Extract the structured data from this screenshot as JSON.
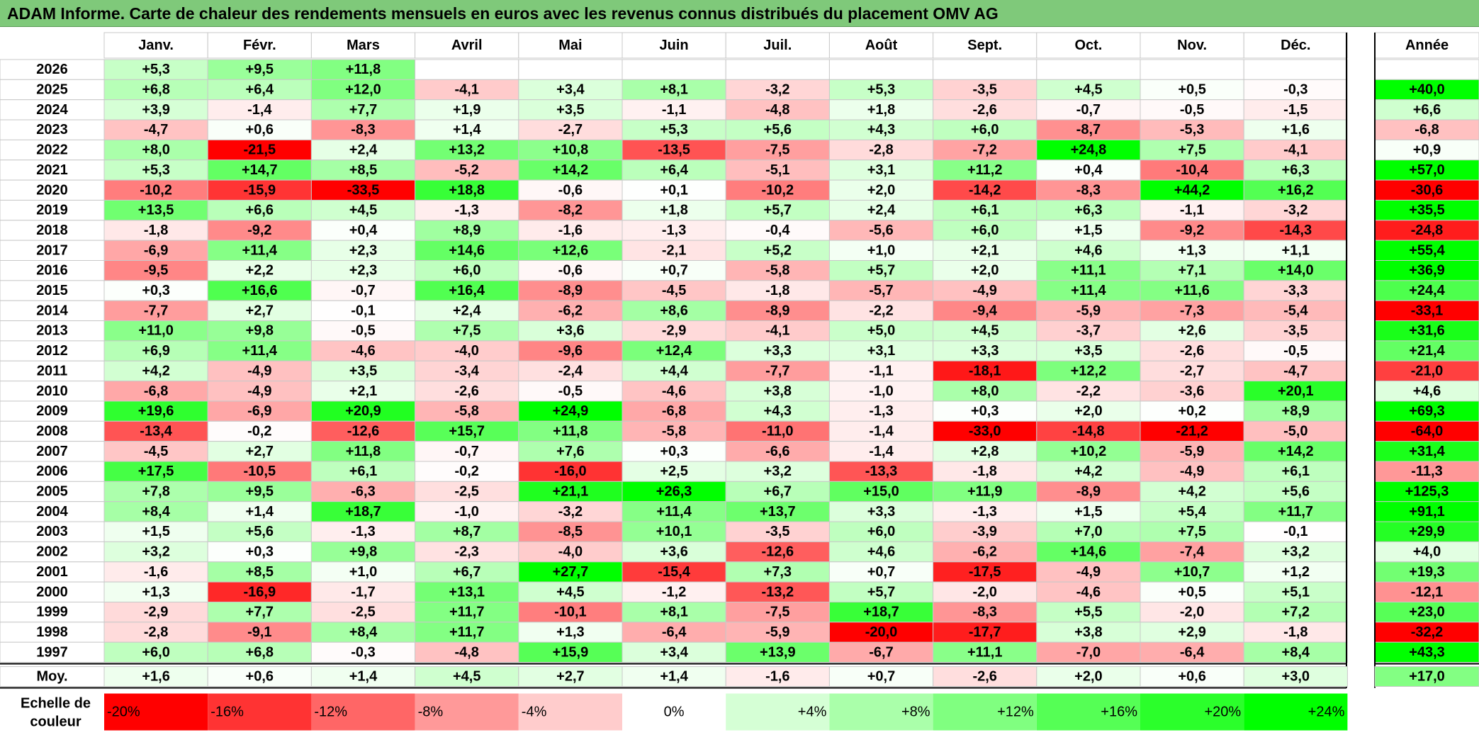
{
  "title": "ADAM Informe. Carte de chaleur des rendements mensuels en euros avec les revenus connus distribués du placement OMV AG",
  "chart_data": {
    "type": "heatmap",
    "title": "ADAM Informe. Carte de chaleur des rendements mensuels en euros avec les revenus connus distribués du placement OMV AG",
    "months": [
      "Janv.",
      "Févr.",
      "Mars",
      "Avril",
      "Mai",
      "Juin",
      "Juil.",
      "Août",
      "Sept.",
      "Oct.",
      "Nov.",
      "Déc."
    ],
    "year_header": "Année",
    "rows": [
      {
        "year": "2026",
        "values": [
          "+5,3",
          "+9,5",
          "+11,8",
          null,
          null,
          null,
          null,
          null,
          null,
          null,
          null,
          null
        ],
        "annual": null
      },
      {
        "year": "2025",
        "values": [
          "+6,8",
          "+6,4",
          "+12,0",
          "-4,1",
          "+3,4",
          "+8,1",
          "-3,2",
          "+5,3",
          "-3,5",
          "+4,5",
          "+0,5",
          "-0,3"
        ],
        "annual": "+40,0"
      },
      {
        "year": "2024",
        "values": [
          "+3,9",
          "-1,4",
          "+7,7",
          "+1,9",
          "+3,5",
          "-1,1",
          "-4,8",
          "+1,8",
          "-2,6",
          "-0,7",
          "-0,5",
          "-1,5"
        ],
        "annual": "+6,6"
      },
      {
        "year": "2023",
        "values": [
          "-4,7",
          "+0,6",
          "-8,3",
          "+1,4",
          "-2,7",
          "+5,3",
          "+5,6",
          "+4,3",
          "+6,0",
          "-8,7",
          "-5,3",
          "+1,6"
        ],
        "annual": "-6,8"
      },
      {
        "year": "2022",
        "values": [
          "+8,0",
          "-21,5",
          "+2,4",
          "+13,2",
          "+10,8",
          "-13,5",
          "-7,5",
          "-2,8",
          "-7,2",
          "+24,8",
          "+7,5",
          "-4,1"
        ],
        "annual": "+0,9"
      },
      {
        "year": "2021",
        "values": [
          "+5,3",
          "+14,7",
          "+8,5",
          "-5,2",
          "+14,2",
          "+6,4",
          "-5,1",
          "+3,1",
          "+11,2",
          "+0,4",
          "-10,4",
          "+6,3"
        ],
        "annual": "+57,0"
      },
      {
        "year": "2020",
        "values": [
          "-10,2",
          "-15,9",
          "-33,5",
          "+18,8",
          "-0,6",
          "+0,1",
          "-10,2",
          "+2,0",
          "-14,2",
          "-8,3",
          "+44,2",
          "+16,2"
        ],
        "annual": "-30,6"
      },
      {
        "year": "2019",
        "values": [
          "+13,5",
          "+6,6",
          "+4,5",
          "-1,3",
          "-8,2",
          "+1,8",
          "+5,7",
          "+2,4",
          "+6,1",
          "+6,3",
          "-1,1",
          "-3,2"
        ],
        "annual": "+35,5"
      },
      {
        "year": "2018",
        "values": [
          "-1,8",
          "-9,2",
          "+0,4",
          "+8,9",
          "-1,6",
          "-1,3",
          "-0,4",
          "-5,6",
          "+6,0",
          "+1,5",
          "-9,2",
          "-14,3"
        ],
        "annual": "-24,8"
      },
      {
        "year": "2017",
        "values": [
          "-6,9",
          "+11,4",
          "+2,3",
          "+14,6",
          "+12,6",
          "-2,1",
          "+5,2",
          "+1,0",
          "+2,1",
          "+4,6",
          "+1,3",
          "+1,1"
        ],
        "annual": "+55,4"
      },
      {
        "year": "2016",
        "values": [
          "-9,5",
          "+2,2",
          "+2,3",
          "+6,0",
          "-0,6",
          "+0,7",
          "-5,8",
          "+5,7",
          "+2,0",
          "+11,1",
          "+7,1",
          "+14,0"
        ],
        "annual": "+36,9"
      },
      {
        "year": "2015",
        "values": [
          "+0,3",
          "+16,6",
          "-0,7",
          "+16,4",
          "-8,9",
          "-4,5",
          "-1,8",
          "-5,7",
          "-4,9",
          "+11,4",
          "+11,6",
          "-3,3"
        ],
        "annual": "+24,4"
      },
      {
        "year": "2014",
        "values": [
          "-7,7",
          "+2,7",
          "-0,1",
          "+2,4",
          "-6,2",
          "+8,6",
          "-8,9",
          "-2,2",
          "-9,4",
          "-5,9",
          "-7,3",
          "-5,4"
        ],
        "annual": "-33,1"
      },
      {
        "year": "2013",
        "values": [
          "+11,0",
          "+9,8",
          "-0,5",
          "+7,5",
          "+3,6",
          "-2,9",
          "-4,1",
          "+5,0",
          "+4,5",
          "-3,7",
          "+2,6",
          "-3,5"
        ],
        "annual": "+31,6"
      },
      {
        "year": "2012",
        "values": [
          "+6,9",
          "+11,4",
          "-4,6",
          "-4,0",
          "-9,6",
          "+12,4",
          "+3,3",
          "+3,1",
          "+3,3",
          "+3,5",
          "-2,6",
          "-0,5"
        ],
        "annual": "+21,4"
      },
      {
        "year": "2011",
        "values": [
          "+4,2",
          "-4,9",
          "+3,5",
          "-3,4",
          "-2,4",
          "+4,4",
          "-7,7",
          "-1,1",
          "-18,1",
          "+12,2",
          "-2,7",
          "-4,7"
        ],
        "annual": "-21,0"
      },
      {
        "year": "2010",
        "values": [
          "-6,8",
          "-4,9",
          "+2,1",
          "-2,6",
          "-0,5",
          "-4,6",
          "+3,8",
          "-1,0",
          "+8,0",
          "-2,2",
          "-3,6",
          "+20,1"
        ],
        "annual": "+4,6"
      },
      {
        "year": "2009",
        "values": [
          "+19,6",
          "-6,9",
          "+20,9",
          "-5,8",
          "+24,9",
          "-6,8",
          "+4,3",
          "-1,3",
          "+0,3",
          "+2,0",
          "+0,2",
          "+8,9"
        ],
        "annual": "+69,3"
      },
      {
        "year": "2008",
        "values": [
          "-13,4",
          "-0,2",
          "-12,6",
          "+15,7",
          "+11,8",
          "-5,8",
          "-11,0",
          "-1,4",
          "-33,0",
          "-14,8",
          "-21,2",
          "-5,0"
        ],
        "annual": "-64,0"
      },
      {
        "year": "2007",
        "values": [
          "-4,5",
          "+2,7",
          "+11,8",
          "-0,7",
          "+7,6",
          "+0,3",
          "-6,6",
          "-1,4",
          "+2,8",
          "+10,2",
          "-5,9",
          "+14,2"
        ],
        "annual": "+31,4"
      },
      {
        "year": "2006",
        "values": [
          "+17,5",
          "-10,5",
          "+6,1",
          "-0,2",
          "-16,0",
          "+2,5",
          "+3,2",
          "-13,3",
          "-1,8",
          "+4,2",
          "-4,9",
          "+6,1"
        ],
        "annual": "-11,3"
      },
      {
        "year": "2005",
        "values": [
          "+7,8",
          "+9,5",
          "-6,3",
          "-2,5",
          "+21,1",
          "+26,3",
          "+6,7",
          "+15,0",
          "+11,9",
          "-8,9",
          "+4,2",
          "+5,6"
        ],
        "annual": "+125,3"
      },
      {
        "year": "2004",
        "values": [
          "+8,4",
          "+1,4",
          "+18,7",
          "-1,0",
          "-3,2",
          "+11,4",
          "+13,7",
          "+3,3",
          "-1,3",
          "+1,5",
          "+5,4",
          "+11,7"
        ],
        "annual": "+91,1"
      },
      {
        "year": "2003",
        "values": [
          "+1,5",
          "+5,6",
          "-1,3",
          "+8,7",
          "-8,5",
          "+10,1",
          "-3,5",
          "+6,0",
          "-3,9",
          "+7,0",
          "+7,5",
          "-0,1"
        ],
        "annual": "+29,9"
      },
      {
        "year": "2002",
        "values": [
          "+3,2",
          "+0,3",
          "+9,8",
          "-2,3",
          "-4,0",
          "+3,6",
          "-12,6",
          "+4,6",
          "-6,2",
          "+14,6",
          "-7,4",
          "+3,2"
        ],
        "annual": "+4,0"
      },
      {
        "year": "2001",
        "values": [
          "-1,6",
          "+8,5",
          "+1,0",
          "+6,7",
          "+27,7",
          "-15,4",
          "+7,3",
          "+0,7",
          "-17,5",
          "-4,9",
          "+10,7",
          "+1,2"
        ],
        "annual": "+19,3"
      },
      {
        "year": "2000",
        "values": [
          "+1,3",
          "-16,9",
          "-1,7",
          "+13,1",
          "+4,5",
          "-1,2",
          "-13,2",
          "+5,7",
          "-2,0",
          "-4,6",
          "+0,5",
          "+5,1"
        ],
        "annual": "-12,1"
      },
      {
        "year": "1999",
        "values": [
          "-2,9",
          "+7,7",
          "-2,5",
          "+11,7",
          "-10,1",
          "+8,1",
          "-7,5",
          "+18,7",
          "-8,3",
          "+5,5",
          "-2,0",
          "+7,2"
        ],
        "annual": "+23,0"
      },
      {
        "year": "1998",
        "values": [
          "-2,8",
          "-9,1",
          "+8,4",
          "+11,7",
          "+1,3",
          "-6,4",
          "-5,9",
          "-20,0",
          "-17,7",
          "+3,8",
          "+2,9",
          "-1,8"
        ],
        "annual": "-32,2"
      },
      {
        "year": "1997",
        "values": [
          "+6,0",
          "+6,8",
          "-0,3",
          "-4,8",
          "+15,9",
          "+3,4",
          "+13,9",
          "-6,7",
          "+11,1",
          "-7,0",
          "-6,4",
          "+8,4"
        ],
        "annual": "+43,3"
      }
    ],
    "average": {
      "label": "Moy.",
      "values": [
        "+1,6",
        "+0,6",
        "+1,4",
        "+4,5",
        "+2,7",
        "+1,4",
        "-1,6",
        "+0,7",
        "-2,6",
        "+2,0",
        "+0,6",
        "+3,0"
      ],
      "annual": "+17,0"
    },
    "scale": {
      "label_line1": "Echelle de",
      "label_line2": "couleur",
      "steps": [
        "-20%",
        "-16%",
        "-12%",
        "-8%",
        "-4%",
        "0%",
        "+4%",
        "+8%",
        "+12%",
        "+16%",
        "+20%",
        "+24%"
      ],
      "step_values": [
        -20,
        -16,
        -12,
        -8,
        -4,
        0,
        4,
        8,
        12,
        16,
        20,
        24
      ]
    },
    "colors": {
      "negative_max": "#ff0000",
      "neutral": "#ffffff",
      "positive_max": "#00ff00",
      "header_bg": "#7fc97a"
    }
  }
}
